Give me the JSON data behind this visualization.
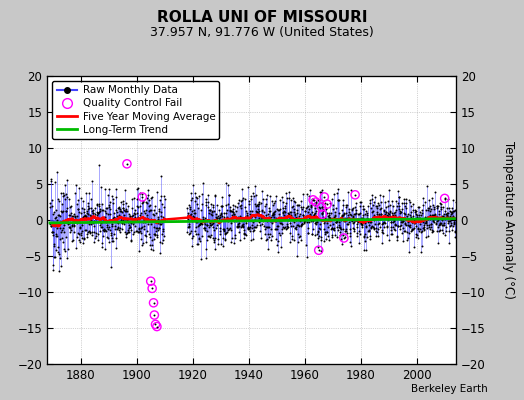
{
  "title": "ROLLA UNI OF MISSOURI",
  "subtitle": "37.957 N, 91.776 W (United States)",
  "ylabel": "Temperature Anomaly (°C)",
  "credit": "Berkeley Earth",
  "xlim": [
    1868,
    2014
  ],
  "ylim": [
    -20,
    20
  ],
  "yticks": [
    -20,
    -15,
    -10,
    -5,
    0,
    5,
    10,
    15,
    20
  ],
  "xticks": [
    1880,
    1900,
    1920,
    1940,
    1960,
    1980,
    2000
  ],
  "background_color": "#c8c8c8",
  "plot_bg_color": "#ffffff",
  "seed": 42,
  "start_year": 1869,
  "end_year": 2013,
  "raw_color": "#4444ff",
  "dot_color": "#000000",
  "qc_color": "#ff00ff",
  "moving_avg_color": "#ff0000",
  "trend_color": "#00bb00",
  "trend_slope": 0.004,
  "trend_intercept": -0.4,
  "moving_avg_window": 60,
  "gap_start": 1910,
  "gap_end": 1918,
  "early_end": 1875,
  "qc_fail_times": [
    1896.5,
    1902.0,
    1905.0,
    1905.5,
    1906.0,
    1906.3,
    1906.7,
    1907.2,
    1963.0,
    1964.0,
    1965.0,
    1966.0,
    1966.3,
    1967.0,
    1968.0,
    1974.0,
    1978.0,
    2010.0
  ],
  "qc_fail_anomalies": [
    7.8,
    3.2,
    -8.5,
    -9.5,
    -11.5,
    -13.2,
    -14.5,
    -14.8,
    2.8,
    2.5,
    -4.2,
    1.8,
    0.8,
    3.2,
    2.2,
    -2.5,
    3.5,
    3.0
  ]
}
